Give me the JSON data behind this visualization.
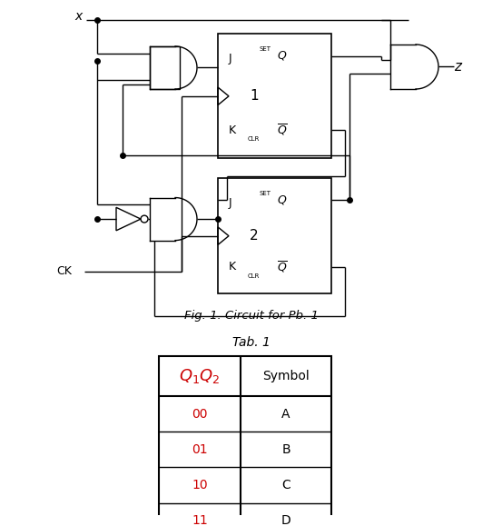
{
  "fig_caption": "Fig. 1. Circuit for Pb. 1",
  "tab_caption": "Tab. 1",
  "table_header": [
    "Q₁Q₂",
    "Symbol"
  ],
  "table_rows": [
    [
      "00",
      "A"
    ],
    [
      "01",
      "B"
    ],
    [
      "10",
      "C"
    ],
    [
      "11",
      "D"
    ]
  ],
  "table_colors": {
    "header_qq_color": "#cc0000",
    "data_qq_color": "#cc0000",
    "data_sym_color": "#000000",
    "border_color": "#000000"
  },
  "background_color": "#ffffff",
  "text_color": "#000000"
}
